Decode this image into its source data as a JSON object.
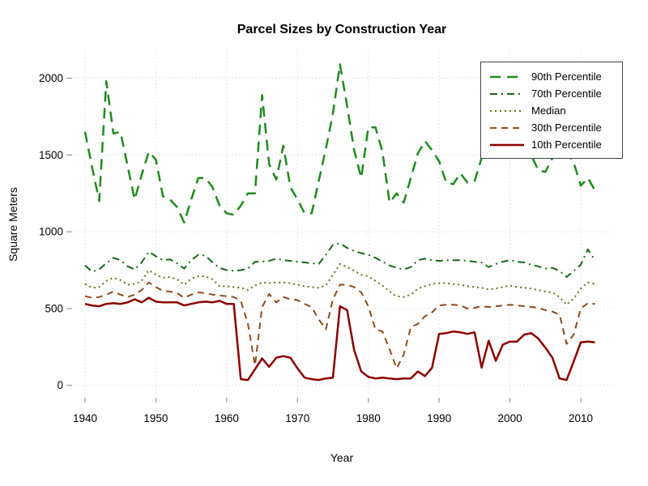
{
  "figure": {
    "title": "Parcel Sizes by Construction Year",
    "xlabel": "Year",
    "ylabel": "Square Meters"
  },
  "chart_data": {
    "type": "line",
    "title": "Parcel Sizes by Construction Year",
    "xlabel": "Year",
    "ylabel": "Square Meters",
    "xlim": [
      1937,
      2015
    ],
    "ylim": [
      0,
      2100
    ],
    "x_ticks": [
      1940,
      1950,
      1960,
      1970,
      1980,
      1990,
      2000,
      2010
    ],
    "y_ticks": [
      0,
      500,
      1000,
      1500,
      2000
    ],
    "grid": "dotted-light-gray",
    "grid_color": "#DCDCDC",
    "tick_color": "#9A9A9A",
    "legend_position": "top-right",
    "years": [
      1940,
      1941,
      1942,
      1943,
      1944,
      1945,
      1946,
      1947,
      1948,
      1949,
      1950,
      1951,
      1952,
      1953,
      1954,
      1955,
      1956,
      1957,
      1958,
      1959,
      1960,
      1961,
      1962,
      1963,
      1964,
      1965,
      1966,
      1967,
      1968,
      1969,
      1970,
      1971,
      1972,
      1973,
      1974,
      1975,
      1976,
      1977,
      1978,
      1979,
      1980,
      1981,
      1982,
      1983,
      1984,
      1985,
      1986,
      1987,
      1988,
      1989,
      1990,
      1991,
      1992,
      1993,
      1994,
      1995,
      1996,
      1997,
      1998,
      1999,
      2000,
      2001,
      2002,
      2003,
      2004,
      2005,
      2006,
      2007,
      2008,
      2009,
      2010,
      2011,
      2012
    ],
    "series": [
      {
        "name": "90th Percentile",
        "color": "#1E8B1E",
        "dash": "13 8",
        "width": 2.5,
        "values": [
          1650,
          1420,
          1200,
          1980,
          1640,
          1650,
          1430,
          1210,
          1370,
          1520,
          1470,
          1230,
          1210,
          1160,
          1060,
          1210,
          1350,
          1350,
          1290,
          1170,
          1120,
          1110,
          1170,
          1250,
          1250,
          1890,
          1440,
          1340,
          1560,
          1290,
          1210,
          1120,
          1120,
          1330,
          1540,
          1770,
          2090,
          1820,
          1530,
          1350,
          1680,
          1680,
          1520,
          1190,
          1250,
          1190,
          1350,
          1510,
          1590,
          1530,
          1460,
          1320,
          1310,
          1380,
          1320,
          1330,
          1480,
          1490,
          1560,
          1540,
          1530,
          1530,
          1520,
          1500,
          1400,
          1390,
          1480,
          1520,
          1520,
          1450,
          1300,
          1350,
          1270
        ]
      },
      {
        "name": "70th Percentile",
        "color": "#1A661A",
        "dash": "9 5 2 5",
        "width": 2,
        "values": [
          780,
          740,
          755,
          795,
          830,
          815,
          775,
          755,
          800,
          870,
          840,
          815,
          820,
          795,
          760,
          815,
          850,
          845,
          800,
          765,
          750,
          745,
          750,
          760,
          805,
          805,
          810,
          825,
          815,
          810,
          805,
          800,
          795,
          790,
          850,
          915,
          925,
          895,
          875,
          860,
          850,
          830,
          805,
          780,
          765,
          755,
          770,
          815,
          825,
          815,
          810,
          815,
          815,
          815,
          810,
          805,
          800,
          770,
          790,
          805,
          815,
          805,
          800,
          785,
          775,
          760,
          765,
          745,
          705,
          745,
          785,
          885,
          815
        ]
      },
      {
        "name": "Median",
        "color": "#6B6B23",
        "dash": "2 4",
        "width": 2,
        "values": [
          660,
          635,
          640,
          680,
          700,
          685,
          655,
          660,
          680,
          750,
          720,
          700,
          705,
          690,
          655,
          695,
          710,
          710,
          690,
          645,
          645,
          640,
          635,
          620,
          650,
          670,
          665,
          670,
          670,
          665,
          655,
          645,
          640,
          635,
          650,
          720,
          790,
          770,
          745,
          720,
          710,
          680,
          650,
          610,
          580,
          575,
          590,
          630,
          645,
          660,
          665,
          665,
          660,
          655,
          645,
          640,
          635,
          625,
          630,
          640,
          650,
          640,
          635,
          630,
          620,
          610,
          605,
          575,
          525,
          565,
          630,
          670,
          660
        ]
      },
      {
        "name": "30th Percentile",
        "color": "#8C4B20",
        "dash": "8 6",
        "width": 2,
        "values": [
          580,
          570,
          575,
          590,
          610,
          590,
          575,
          590,
          620,
          670,
          640,
          615,
          610,
          600,
          570,
          590,
          605,
          600,
          590,
          585,
          580,
          575,
          550,
          400,
          130,
          510,
          595,
          540,
          575,
          560,
          555,
          530,
          510,
          430,
          365,
          560,
          655,
          655,
          640,
          605,
          515,
          365,
          350,
          235,
          110,
          200,
          380,
          400,
          450,
          475,
          520,
          525,
          525,
          520,
          500,
          505,
          515,
          510,
          515,
          520,
          525,
          520,
          515,
          510,
          505,
          490,
          480,
          460,
          270,
          330,
          500,
          535,
          530
        ]
      },
      {
        "name": "10th Percentile",
        "color": "#8B0000",
        "dash": "",
        "width": 2.5,
        "values": [
          530,
          520,
          515,
          530,
          535,
          530,
          540,
          560,
          540,
          570,
          545,
          540,
          540,
          540,
          520,
          530,
          540,
          545,
          540,
          550,
          530,
          530,
          40,
          35,
          105,
          175,
          120,
          180,
          190,
          180,
          110,
          50,
          40,
          35,
          45,
          50,
          515,
          490,
          230,
          90,
          55,
          45,
          50,
          45,
          40,
          45,
          45,
          90,
          60,
          115,
          335,
          340,
          350,
          345,
          335,
          345,
          115,
          290,
          160,
          265,
          285,
          285,
          330,
          340,
          305,
          245,
          180,
          45,
          35,
          155,
          280,
          285,
          280
        ]
      }
    ]
  }
}
